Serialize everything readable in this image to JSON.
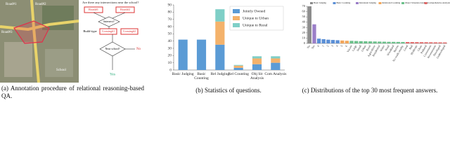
{
  "panel_a": {
    "question": "Are there any intersections near the school?",
    "map_labels": [
      "Road#1",
      "Road#2",
      "Road#3",
      "School"
    ],
    "flow": [
      "Road#1",
      "Road#2",
      "Intersect?",
      "Build-type",
      "Crossing#1",
      "Crossing#2",
      "Near school?",
      "Yes",
      "No"
    ]
  },
  "captions": [
    "(a) Annotation procedure of relational reasoning-based QA.",
    "(b) Statistics of questions.",
    "(c) Distributions of the top 30 most frequent answers."
  ],
  "chart_data": [
    {
      "type": "bar",
      "stacked": true,
      "categories": [
        "Basic Judging",
        "Basic Counting",
        "Rel Judging",
        "Rel Counting",
        "Obj Sit Analysis",
        "Com Analysis"
      ],
      "series": [
        {
          "name": "Jointly Owned",
          "color": "#5b9bd5",
          "values": [
            42,
            42,
            35,
            3,
            8,
            10
          ]
        },
        {
          "name": "Unique to Urban",
          "color": "#f4b26b",
          "values": [
            null,
            null,
            32,
            3,
            8,
            6
          ]
        },
        {
          "name": "Unique to Rural",
          "color": "#7fcfc7",
          "values": [
            null,
            null,
            17,
            1,
            3,
            3
          ]
        }
      ],
      "ylim": [
        0,
        90
      ],
      "yticks": [
        0,
        10,
        20,
        30,
        40,
        50,
        60,
        70,
        80,
        90
      ],
      "legend": "upper-right"
    },
    {
      "type": "bar",
      "stacked": false,
      "categories": [
        "No",
        "Yes",
        "0",
        "1",
        "2",
        "3",
        "4",
        "5",
        "6",
        "Vacant",
        "Large",
        "Small",
        "Urban",
        "Rural",
        "Agriculture",
        "Residential",
        "Water",
        "Road",
        "Woodland",
        "Barren",
        "No roads nearby",
        "Good",
        "Bad",
        "Moderate",
        "Clean",
        "Polluted",
        "Convenient",
        "Inconvenient",
        "Developed",
        "Undeveloped"
      ],
      "series": [
        {
          "name": "Basic Judging",
          "color": "#8c8c8c",
          "values": [
            70,
            null,
            null,
            null,
            null,
            null,
            null,
            null,
            null,
            null,
            null,
            null,
            null,
            null,
            null,
            null,
            null,
            null,
            null,
            null,
            null,
            null,
            null,
            null,
            null,
            null,
            null,
            null,
            null,
            null
          ]
        },
        {
          "name": "Basic Counting",
          "color": "#5b8fd6",
          "values": [
            null,
            null,
            9,
            8,
            7,
            6.5,
            6,
            null,
            null,
            null,
            null,
            null,
            null,
            null,
            null,
            null,
            null,
            null,
            null,
            null,
            null,
            null,
            null,
            null,
            null,
            null,
            null,
            null,
            null,
            null
          ]
        },
        {
          "name": "Relational Judging",
          "color": "#9b7fc8",
          "values": [
            null,
            36,
            null,
            null,
            null,
            null,
            null,
            null,
            null,
            null,
            null,
            null,
            null,
            null,
            null,
            null,
            null,
            null,
            null,
            null,
            null,
            null,
            null,
            null,
            null,
            null,
            null,
            null,
            null,
            null
          ]
        },
        {
          "name": "Relational Counting",
          "color": "#f2a65a",
          "values": [
            null,
            null,
            null,
            null,
            null,
            null,
            null,
            5.5,
            5,
            null,
            null,
            null,
            null,
            null,
            null,
            null,
            null,
            null,
            null,
            null,
            null,
            null,
            null,
            null,
            null,
            null,
            null,
            null,
            null,
            null
          ]
        },
        {
          "name": "Object Situation Analysis",
          "color": "#6cc08b",
          "values": [
            null,
            null,
            null,
            null,
            null,
            null,
            null,
            null,
            null,
            4.8,
            4.5,
            4.2,
            4,
            3.8,
            3.6,
            3.4,
            3.2,
            3,
            2.9,
            2.8,
            2.7,
            null,
            null,
            null,
            null,
            null,
            null,
            null,
            null,
            null
          ]
        },
        {
          "name": "Comprehensive Analysis",
          "color": "#e06666",
          "values": [
            null,
            null,
            null,
            null,
            null,
            null,
            null,
            null,
            null,
            null,
            null,
            null,
            null,
            null,
            null,
            null,
            null,
            null,
            null,
            null,
            null,
            2.6,
            2.5,
            2.4,
            2.3,
            2.2,
            2.1,
            2,
            1.9,
            1.8
          ]
        }
      ],
      "ylim": [
        0,
        70
      ],
      "yticks": [
        0,
        10,
        20,
        30,
        40,
        50,
        60,
        70
      ],
      "legend": "top"
    }
  ]
}
